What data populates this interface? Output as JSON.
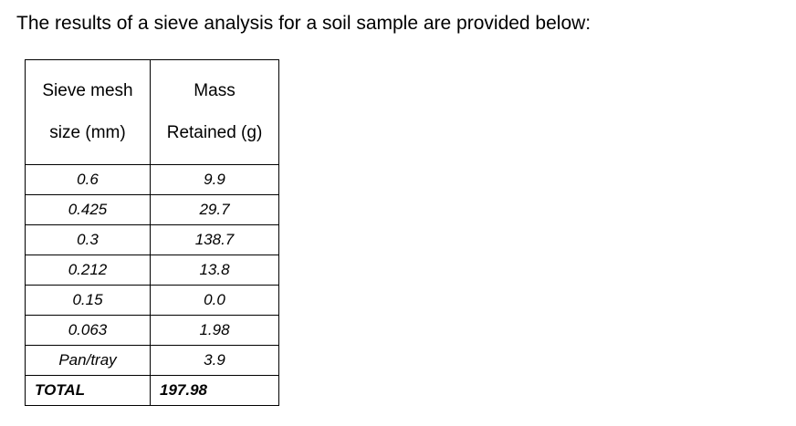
{
  "intro": "The results of a sieve analysis for a soil sample are provided below:",
  "table": {
    "headers": [
      [
        "Sieve mesh",
        "size (mm)"
      ],
      [
        "Mass",
        "Retained (g)"
      ]
    ],
    "rows": [
      {
        "size": "0.6",
        "mass": "9.9"
      },
      {
        "size": "0.425",
        "mass": "29.7"
      },
      {
        "size": "0.3",
        "mass": "138.7"
      },
      {
        "size": "0.212",
        "mass": "13.8"
      },
      {
        "size": "0.15",
        "mass": "0.0"
      },
      {
        "size": "0.063",
        "mass": "1.98"
      },
      {
        "size": "Pan/tray",
        "mass": "3.9"
      }
    ],
    "total": {
      "label": "TOTAL",
      "value": "197.98"
    }
  }
}
